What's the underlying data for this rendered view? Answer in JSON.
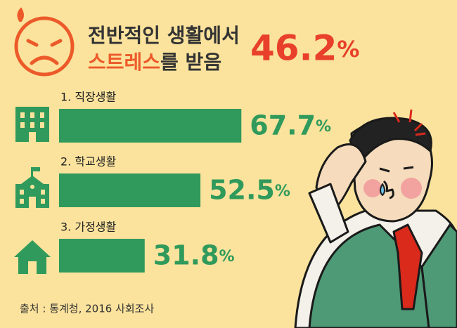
{
  "chart_data": {
    "type": "bar",
    "title": {
      "line1": "전반적인 생활에서",
      "line2_highlight": "스트레스",
      "line2_rest": "를 받음"
    },
    "headline": {
      "value": 46.2,
      "label": "46.2%"
    },
    "categories": [
      "1. 직장생활",
      "2. 학교생활",
      "3. 가정생활"
    ],
    "values": [
      67.7,
      52.5,
      31.8
    ],
    "value_labels": [
      "67.7%",
      "52.5%",
      "31.8%"
    ],
    "color": "#2f9a5b",
    "source": "출처 : 통계청, 2016 사회조사"
  }
}
